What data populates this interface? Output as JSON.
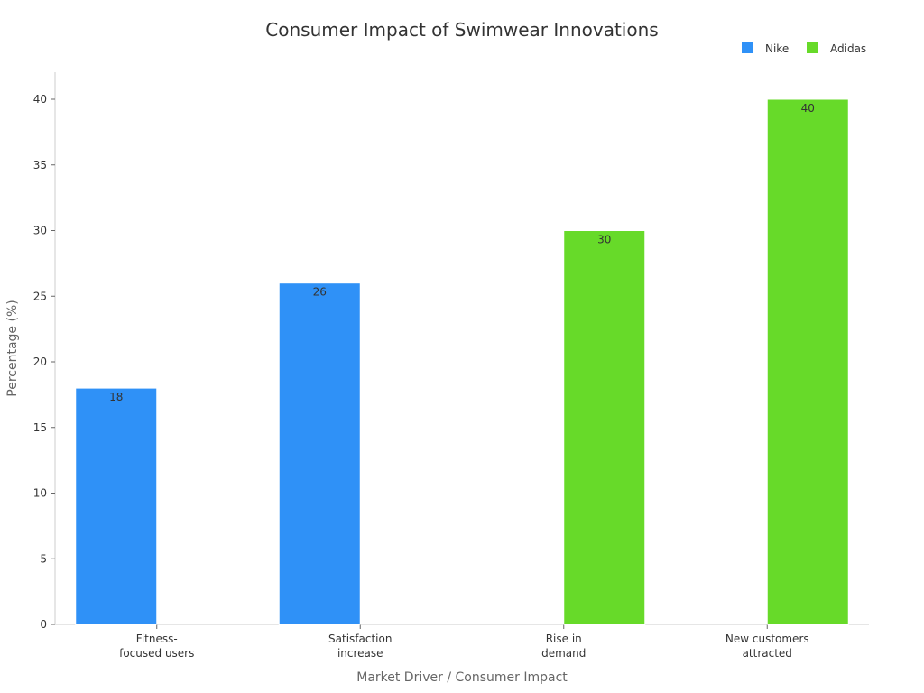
{
  "chart_data": {
    "type": "bar",
    "title": "Consumer Impact of Swimwear Innovations",
    "xlabel": "Market Driver / Consumer Impact",
    "ylabel": "Percentage (%)",
    "ylim": [
      0,
      42
    ],
    "yticks": [
      0,
      5,
      10,
      15,
      20,
      25,
      30,
      35,
      40
    ],
    "categories": [
      [
        "Fitness-",
        "focused users"
      ],
      [
        "Satisfaction",
        "increase"
      ],
      [
        "Rise in",
        "demand"
      ],
      [
        "New customers",
        "attracted"
      ]
    ],
    "series": [
      {
        "name": "Nike",
        "color": "#2f91f7",
        "values": [
          18,
          26,
          null,
          null
        ]
      },
      {
        "name": "Adidas",
        "color": "#67da29",
        "values": [
          null,
          null,
          30,
          40
        ]
      }
    ],
    "legend_position": "top-right",
    "grid": false,
    "data_labels": true
  }
}
